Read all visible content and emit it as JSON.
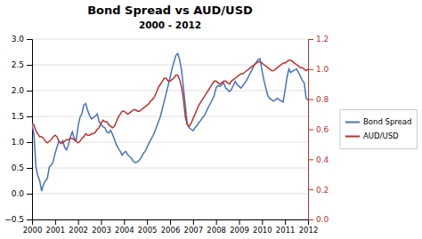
{
  "chart_data": {
    "type": "line",
    "title": "Bond Spread vs AUD/USD",
    "subtitle": "2000 - 2012",
    "x": [
      2000,
      2000.0833333333333,
      2000.1666666666667,
      2000.25,
      2000.3333333333333,
      2000.4166666666667,
      2000.5,
      2000.5833333333333,
      2000.6666666666667,
      2000.75,
      2000.8333333333333,
      2000.9166666666667,
      2001,
      2001.0833333333333,
      2001.1666666666667,
      2001.25,
      2001.3333333333333,
      2001.4166666666667,
      2001.5,
      2001.5833333333333,
      2001.6666666666667,
      2001.75,
      2001.8333333333333,
      2001.9166666666667,
      2002,
      2002.0833333333333,
      2002.1666666666667,
      2002.25,
      2002.3333333333333,
      2002.4166666666667,
      2002.5,
      2002.5833333333333,
      2002.6666666666667,
      2002.75,
      2002.8333333333333,
      2002.9166666666667,
      2003,
      2003.0833333333333,
      2003.1666666666667,
      2003.25,
      2003.3333333333333,
      2003.4166666666667,
      2003.5,
      2003.5833333333333,
      2003.6666666666667,
      2003.75,
      2003.8333333333333,
      2003.9166666666667,
      2004,
      2004.0833333333333,
      2004.1666666666667,
      2004.25,
      2004.3333333333333,
      2004.4166666666667,
      2004.5,
      2004.5833333333333,
      2004.6666666666667,
      2004.75,
      2004.8333333333333,
      2004.9166666666667,
      2005,
      2005.0833333333333,
      2005.1666666666667,
      2005.25,
      2005.3333333333333,
      2005.4166666666667,
      2005.5,
      2005.5833333333333,
      2005.6666666666667,
      2005.75,
      2005.8333333333333,
      2005.9166666666667,
      2006,
      2006.0833333333333,
      2006.1666666666667,
      2006.25,
      2006.3333333333333,
      2006.4166666666667,
      2006.5,
      2006.5833333333333,
      2006.6666666666667,
      2006.75,
      2006.8333333333333,
      2006.9166666666667,
      2007,
      2007.0833333333333,
      2007.1666666666667,
      2007.25,
      2007.3333333333333,
      2007.4166666666667,
      2007.5,
      2007.5833333333333,
      2007.6666666666667,
      2007.75,
      2007.8333333333333,
      2007.9166666666667,
      2008,
      2008.0833333333333,
      2008.1666666666667,
      2008.25,
      2008.3333333333333,
      2008.4166666666667,
      2008.5,
      2008.5833333333333,
      2008.6666666666667,
      2008.75,
      2008.8333333333333,
      2008.9166666666667,
      2009,
      2009.0833333333333,
      2009.1666666666667,
      2009.25,
      2009.3333333333333,
      2009.4166666666667,
      2009.5,
      2009.5833333333333,
      2009.6666666666667,
      2009.75,
      2009.8333333333333,
      2009.9166666666667,
      2010,
      2010.0833333333333,
      2010.1666666666667,
      2010.25,
      2010.3333333333333,
      2010.4166666666667,
      2010.5,
      2010.5833333333333,
      2010.6666666666667,
      2010.75,
      2010.8333333333333,
      2010.9166666666667,
      2011,
      2011.0833333333333,
      2011.1666666666667,
      2011.25,
      2011.3333333333333,
      2011.4166666666667,
      2011.5,
      2011.5833333333333,
      2011.6666666666667,
      2011.75,
      2011.8333333333333,
      2011.9166666666667,
      2012
    ],
    "xlim": [
      2000,
      2012
    ],
    "xticks": [
      2000,
      2001,
      2002,
      2003,
      2004,
      2005,
      2006,
      2007,
      2008,
      2009,
      2010,
      2011,
      2012
    ],
    "ylim": [
      -0.5,
      3.0
    ],
    "yticks": [
      {
        "value": -0.5,
        "label": "−0.5"
      },
      {
        "value": 0,
        "label": "0.0"
      },
      0.5,
      {
        "value": 1.0,
        "label": "1.0"
      },
      1.5,
      {
        "value": 2.0,
        "label": "2.0"
      },
      2.5,
      {
        "value": 3.0,
        "label": "3.0"
      }
    ],
    "y2lim": [
      0,
      1.2
    ],
    "y2ticks": [
      {
        "value": 0,
        "label": "0.0"
      },
      0.2,
      0.4,
      0.6,
      0.8,
      {
        "value": 1.0,
        "label": "1.0"
      },
      1.2
    ],
    "grid": true,
    "legend": "right",
    "series": [
      {
        "name": "Bond Spread",
        "color": "#4472C4",
        "values": [
          1.35,
          1.15,
          0.52,
          0.35,
          0.25,
          0.05,
          0.18,
          0.25,
          0.3,
          0.52,
          0.55,
          0.62,
          0.78,
          0.9,
          1.02,
          0.97,
          1.03,
          0.9,
          0.85,
          0.95,
          1.1,
          1.2,
          1.08,
          1.03,
          1.3,
          1.48,
          1.55,
          1.72,
          1.75,
          1.62,
          1.52,
          1.45,
          1.48,
          1.5,
          1.55,
          1.4,
          1.35,
          1.3,
          1.28,
          1.2,
          1.18,
          1.23,
          1.15,
          1.05,
          0.95,
          0.88,
          0.82,
          0.75,
          0.8,
          0.82,
          0.75,
          0.72,
          0.68,
          0.62,
          0.6,
          0.62,
          0.65,
          0.7,
          0.78,
          0.82,
          0.9,
          0.98,
          1.05,
          1.12,
          1.2,
          1.3,
          1.4,
          1.5,
          1.65,
          1.8,
          1.95,
          2.1,
          2.25,
          2.42,
          2.55,
          2.68,
          2.72,
          2.6,
          2.4,
          2.05,
          1.7,
          1.35,
          1.28,
          1.25,
          1.22,
          1.28,
          1.32,
          1.38,
          1.42,
          1.48,
          1.52,
          1.6,
          1.68,
          1.75,
          1.82,
          1.9,
          2.05,
          2.1,
          2.08,
          2.12,
          2.15,
          2.05,
          2.02,
          1.98,
          2.02,
          2.1,
          2.18,
          2.12,
          2.08,
          2.05,
          2.1,
          2.15,
          2.2,
          2.28,
          2.35,
          2.42,
          2.5,
          2.55,
          2.6,
          2.62,
          2.38,
          2.2,
          2.05,
          1.9,
          1.85,
          1.82,
          1.8,
          1.82,
          1.85,
          1.82,
          1.8,
          1.78,
          2.0,
          2.25,
          2.42,
          2.35,
          2.38,
          2.4,
          2.42,
          2.35,
          2.28,
          2.2,
          2.15,
          1.85,
          1.82
        ]
      },
      {
        "name": "AUD/USD",
        "color": "#C0302A",
        "axis": "y2",
        "values": [
          0.64,
          0.63,
          0.59,
          0.57,
          0.55,
          0.55,
          0.54,
          0.52,
          0.51,
          0.52,
          0.53,
          0.55,
          0.56,
          0.55,
          0.52,
          0.51,
          0.51,
          0.52,
          0.53,
          0.53,
          0.54,
          0.54,
          0.53,
          0.52,
          0.51,
          0.52,
          0.54,
          0.55,
          0.57,
          0.56,
          0.56,
          0.57,
          0.57,
          0.58,
          0.6,
          0.61,
          0.64,
          0.66,
          0.65,
          0.65,
          0.63,
          0.62,
          0.61,
          0.62,
          0.65,
          0.68,
          0.7,
          0.72,
          0.72,
          0.71,
          0.7,
          0.71,
          0.72,
          0.73,
          0.73,
          0.72,
          0.72,
          0.73,
          0.74,
          0.75,
          0.76,
          0.77,
          0.79,
          0.8,
          0.82,
          0.85,
          0.88,
          0.9,
          0.92,
          0.94,
          0.94,
          0.92,
          0.92,
          0.93,
          0.94,
          0.96,
          0.96,
          0.93,
          0.88,
          0.8,
          0.68,
          0.63,
          0.62,
          0.64,
          0.67,
          0.7,
          0.73,
          0.76,
          0.78,
          0.8,
          0.82,
          0.84,
          0.86,
          0.88,
          0.9,
          0.92,
          0.92,
          0.91,
          0.9,
          0.91,
          0.92,
          0.92,
          0.91,
          0.9,
          0.92,
          0.93,
          0.94,
          0.95,
          0.96,
          0.97,
          0.97,
          0.98,
          0.99,
          1.0,
          1.01,
          1.02,
          1.03,
          1.04,
          1.05,
          1.05,
          1.04,
          1.03,
          1.02,
          1.01,
          1.0,
          0.99,
          0.99,
          1.0,
          1.01,
          1.02,
          1.03,
          1.04,
          1.04,
          1.05,
          1.06,
          1.06,
          1.05,
          1.04,
          1.03,
          1.02,
          1.01,
          1.01,
          1.0,
          0.99,
          1.0
        ]
      }
    ]
  }
}
